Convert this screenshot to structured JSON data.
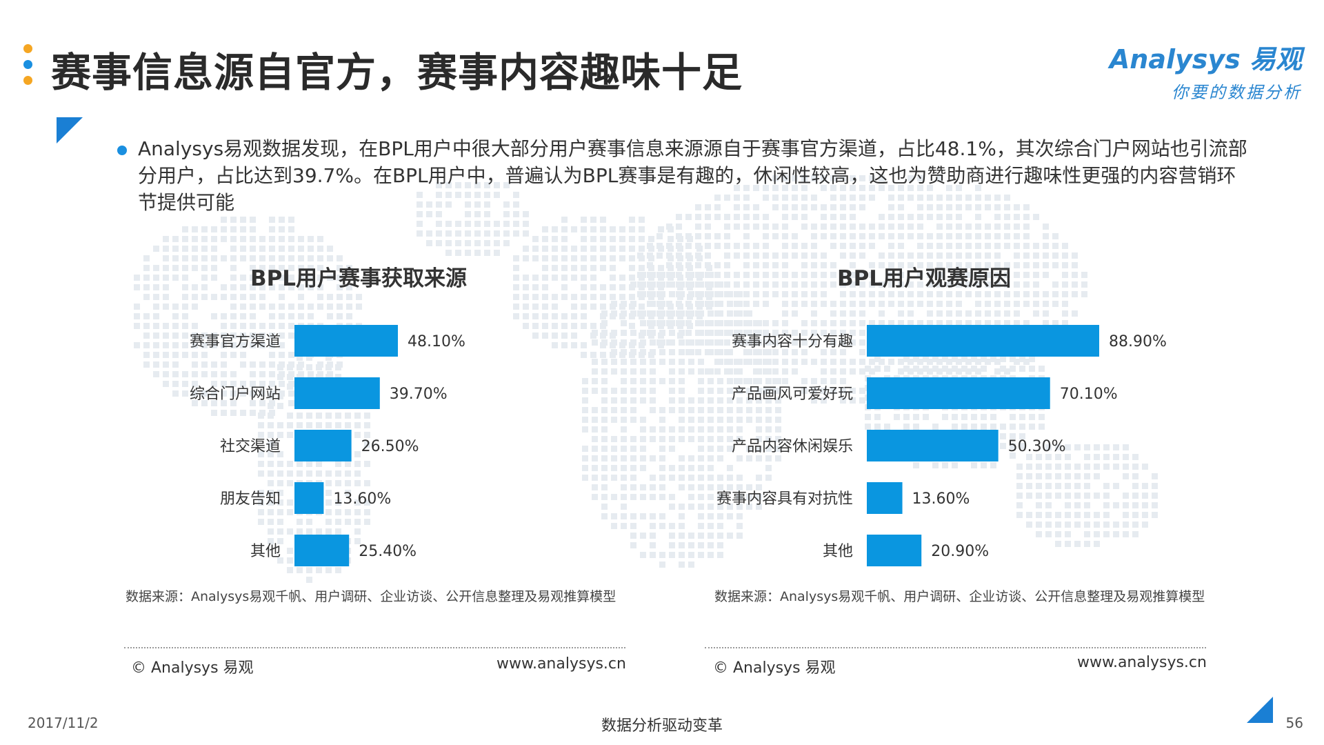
{
  "header": {
    "title": "赛事信息源自官方，赛事内容趣味十足",
    "logo_brand": "Analysys 易观",
    "logo_tagline": "你要的数据分析",
    "dot_colors": [
      "#f5a623",
      "#1a8fe0",
      "#f5a623"
    ]
  },
  "intro": "Analysys易观数据发现，在BPL用户中很大部分用户赛事信息来源源自于赛事官方渠道，占比48.1%，其次综合门户网站也引流部分用户，占比达到39.7%。在BPL用户中，普遍认为BPL赛事是有趣的，休闲性较高，这也为赞助商进行趣味性更强的内容营销环节提供可能",
  "colors": {
    "bar": "#0a96e0",
    "accent": "#1a7fd4"
  },
  "left_panel": {
    "source": "数据来源：Analysys易观千帆、用户调研、企业访谈、公开信息整理及易观推算模型",
    "footer_left": "© Analysys 易观",
    "footer_right": "www.analysys.cn"
  },
  "right_panel": {
    "source": "数据来源：Analysys易观千帆、用户调研、企业访谈、公开信息整理及易观推算模型",
    "footer_left": "© Analysys 易观",
    "footer_right": "www.analysys.cn"
  },
  "chart_data": [
    {
      "type": "bar",
      "orientation": "horizontal",
      "title": "BPL用户赛事获取来源",
      "categories": [
        "赛事官方渠道",
        "综合门户网站",
        "社交渠道",
        "朋友告知",
        "其他"
      ],
      "values": [
        48.1,
        39.7,
        26.5,
        13.6,
        25.4
      ],
      "labels": [
        "48.10%",
        "39.70%",
        "26.50%",
        "13.60%",
        "25.40%"
      ],
      "unit": "%",
      "xlim": [
        0,
        100
      ]
    },
    {
      "type": "bar",
      "orientation": "horizontal",
      "title": "BPL用户观赛原因",
      "categories": [
        "赛事内容十分有趣",
        "产品画风可爱好玩",
        "产品内容休闲娱乐",
        "赛事内容具有对抗性",
        "其他"
      ],
      "values": [
        88.9,
        70.1,
        50.3,
        13.6,
        20.9
      ],
      "labels": [
        "88.90%",
        "70.10%",
        "50.30%",
        "13.60%",
        "20.90%"
      ],
      "unit": "%",
      "xlim": [
        0,
        100
      ]
    }
  ],
  "footer": {
    "date": "2017/11/2",
    "slogan": "数据分析驱动变革",
    "page": "56"
  }
}
